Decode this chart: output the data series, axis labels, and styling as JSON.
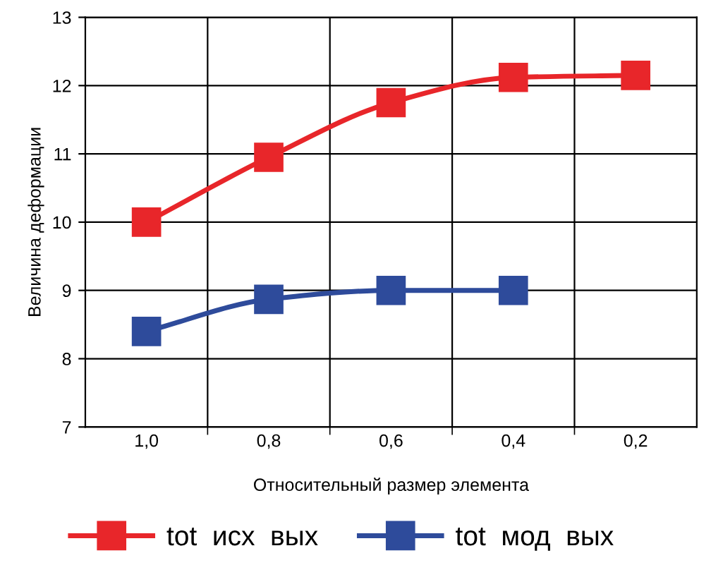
{
  "chart_data": {
    "type": "line",
    "xlabel": "Относительный размер элемента",
    "ylabel": "Величина деформации",
    "categories": [
      "1,0",
      "0,8",
      "0,6",
      "0,4",
      "0,2"
    ],
    "series": [
      {
        "name": "tot  исх  вых",
        "color": "#e8262a",
        "values": [
          10.0,
          10.95,
          11.75,
          12.12,
          12.15
        ]
      },
      {
        "name": "tot  мод  вых",
        "color": "#2e4b9b",
        "values": [
          8.4,
          8.87,
          9.0,
          9.0,
          null
        ]
      }
    ],
    "ylim": [
      7,
      13
    ],
    "yticks": [
      7,
      8,
      9,
      10,
      11,
      12,
      13
    ],
    "grid": true,
    "legend": "bottom",
    "marker": "square",
    "line_style": "solid"
  }
}
